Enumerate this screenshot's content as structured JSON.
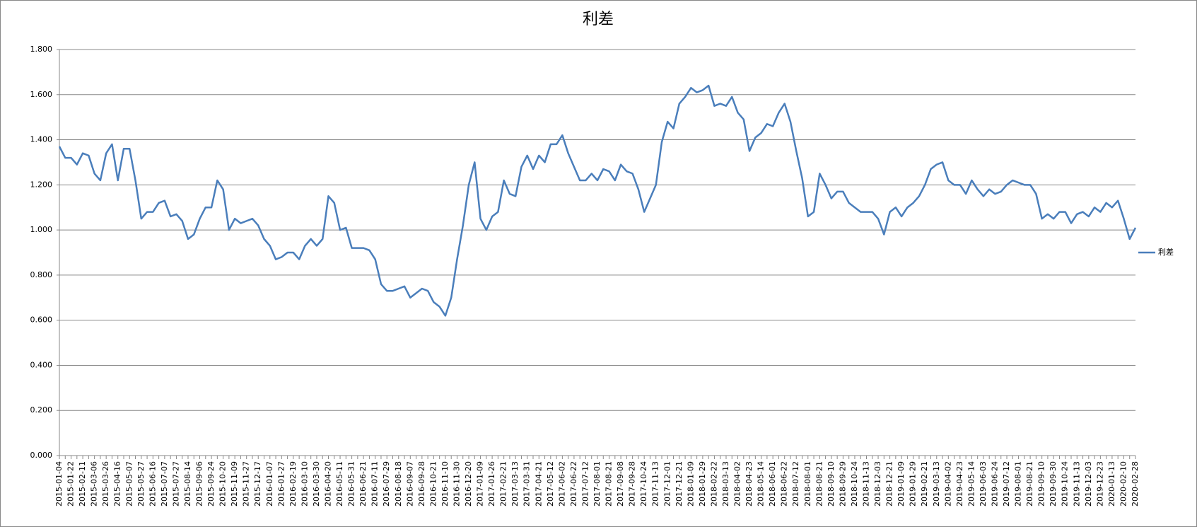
{
  "chart_data": {
    "type": "line",
    "title": "利差",
    "categories": [
      "2015-01-04",
      null,
      "2015-01-22",
      null,
      "2015-02-11",
      null,
      "2015-03-06",
      null,
      "2015-03-26",
      null,
      "2015-04-16",
      null,
      "2015-05-07",
      null,
      "2015-05-27",
      null,
      "2015-06-16",
      null,
      "2015-07-07",
      null,
      "2015-07-27",
      null,
      "2015-08-14",
      null,
      "2015-09-06",
      null,
      "2015-09-24",
      null,
      "2015-10-20",
      null,
      "2015-11-09",
      null,
      "2015-11-27",
      null,
      "2015-12-17",
      null,
      "2016-01-07",
      null,
      "2016-01-27",
      null,
      "2016-02-19",
      null,
      "2016-03-10",
      null,
      "2016-03-30",
      null,
      "2016-04-20",
      null,
      "2016-05-11",
      null,
      "2016-05-31",
      null,
      "2016-06-21",
      null,
      "2016-07-11",
      null,
      "2016-07-29",
      null,
      "2016-08-18",
      null,
      "2016-09-07",
      null,
      "2016-09-28",
      null,
      "2016-10-21",
      null,
      "2016-11-10",
      null,
      "2016-11-30",
      null,
      "2016-12-20",
      null,
      "2017-01-09",
      null,
      "2017-01-26",
      null,
      "2017-02-21",
      null,
      "2017-03-13",
      null,
      "2017-03-31",
      null,
      "2017-04-21",
      null,
      "2017-05-12",
      null,
      "2017-06-02",
      null,
      "2017-06-22",
      null,
      "2017-07-12",
      null,
      "2017-08-01",
      null,
      "2017-08-21",
      null,
      "2017-09-08",
      null,
      "2017-09-28",
      null,
      "2017-10-24",
      null,
      "2017-11-13",
      null,
      "2017-12-01",
      null,
      "2017-12-21",
      null,
      "2018-01-09",
      null,
      "2018-01-29",
      null,
      "2018-02-22",
      null,
      "2018-03-13",
      null,
      "2018-04-02",
      null,
      "2018-04-23",
      null,
      "2018-05-14",
      null,
      "2018-06-01",
      null,
      "2018-06-22",
      null,
      "2018-07-12",
      null,
      "2018-08-01",
      null,
      "2018-08-21",
      null,
      "2018-09-10",
      null,
      "2018-09-29",
      null,
      "2018-10-24",
      null,
      "2018-11-13",
      null,
      "2018-12-03",
      null,
      "2018-12-21",
      null,
      "2019-01-09",
      null,
      "2019-01-29",
      null,
      "2019-02-21",
      null,
      "2019-03-13",
      null,
      "2019-04-02",
      null,
      "2019-04-23",
      null,
      "2019-05-14",
      null,
      "2019-06-03",
      null,
      "2019-06-24",
      null,
      "2019-07-12",
      null,
      "2019-08-01",
      null,
      "2019-08-21",
      null,
      "2019-09-10",
      null,
      "2019-09-30",
      null,
      "2019-10-24",
      null,
      "2019-11-13",
      null,
      "2019-12-03",
      null,
      "2019-12-23",
      null,
      "2020-01-13",
      null,
      "2020-02-10",
      null,
      "2020-02-28"
    ],
    "series": [
      {
        "name": "利差",
        "color": "#4a7ebb",
        "values": [
          1.37,
          1.32,
          1.32,
          1.29,
          1.34,
          1.33,
          1.25,
          1.22,
          1.34,
          1.38,
          1.22,
          1.36,
          1.36,
          1.22,
          1.05,
          1.08,
          1.08,
          1.12,
          1.13,
          1.06,
          1.07,
          1.04,
          0.96,
          0.98,
          1.05,
          1.1,
          1.1,
          1.22,
          1.18,
          1.0,
          1.05,
          1.03,
          1.04,
          1.05,
          1.02,
          0.96,
          0.93,
          0.87,
          0.88,
          0.9,
          0.9,
          0.87,
          0.93,
          0.96,
          0.93,
          0.96,
          1.15,
          1.12,
          1.0,
          1.01,
          0.92,
          0.92,
          0.92,
          0.91,
          0.87,
          0.76,
          0.73,
          0.73,
          0.74,
          0.75,
          0.7,
          0.72,
          0.74,
          0.73,
          0.68,
          0.66,
          0.62,
          0.7,
          0.87,
          1.02,
          1.2,
          1.3,
          1.05,
          1.0,
          1.06,
          1.08,
          1.22,
          1.16,
          1.15,
          1.28,
          1.33,
          1.27,
          1.33,
          1.3,
          1.38,
          1.38,
          1.42,
          1.34,
          1.28,
          1.22,
          1.22,
          1.25,
          1.22,
          1.27,
          1.26,
          1.22,
          1.29,
          1.26,
          1.25,
          1.18,
          1.08,
          1.14,
          1.2,
          1.39,
          1.48,
          1.45,
          1.56,
          1.59,
          1.63,
          1.61,
          1.62,
          1.64,
          1.55,
          1.56,
          1.55,
          1.59,
          1.52,
          1.49,
          1.35,
          1.41,
          1.43,
          1.47,
          1.46,
          1.52,
          1.56,
          1.48,
          1.35,
          1.23,
          1.06,
          1.08,
          1.25,
          1.2,
          1.14,
          1.17,
          1.17,
          1.12,
          1.1,
          1.08,
          1.08,
          1.08,
          1.05,
          0.98,
          1.08,
          1.1,
          1.06,
          1.1,
          1.12,
          1.15,
          1.2,
          1.27,
          1.29,
          1.3,
          1.22,
          1.2,
          1.2,
          1.16,
          1.22,
          1.18,
          1.15,
          1.18,
          1.16,
          1.17,
          1.2,
          1.22,
          1.21,
          1.2,
          1.2,
          1.16,
          1.05,
          1.07,
          1.05,
          1.08,
          1.08,
          1.03,
          1.07,
          1.08,
          1.06,
          1.1,
          1.08,
          1.12,
          1.1,
          1.13,
          1.05,
          0.96,
          1.01
        ]
      }
    ],
    "ylim": [
      0,
      1.8
    ],
    "yticks": [
      {
        "value": 0,
        "label": "0.000"
      },
      {
        "value": 0.2,
        "label": "0.200"
      },
      {
        "value": 0.4,
        "label": "0.400"
      },
      {
        "value": 0.6,
        "label": "0.600"
      },
      {
        "value": 0.8,
        "label": "0.800"
      },
      {
        "value": 1,
        "label": "1.000"
      },
      {
        "value": 1.2,
        "label": "1.200"
      },
      {
        "value": 1.4,
        "label": "1.400"
      },
      {
        "value": 1.6,
        "label": "1.600"
      },
      {
        "value": 1.8,
        "label": "1.800"
      }
    ],
    "grid": true,
    "legend": "right"
  }
}
